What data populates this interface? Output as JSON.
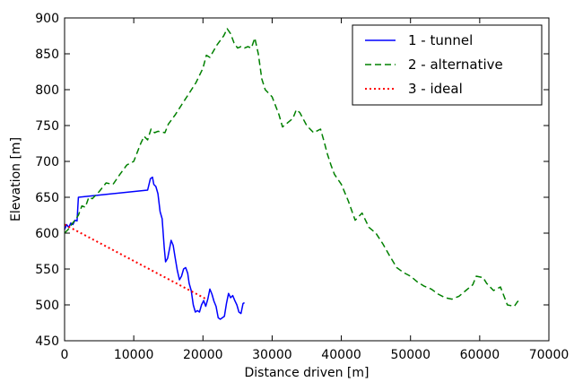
{
  "chart_data": {
    "type": "line",
    "title": "",
    "xlabel": "Distance driven [m]",
    "ylabel": "Elevation [m]",
    "xlim": [
      0,
      70000
    ],
    "ylim": [
      450,
      900
    ],
    "xticks": [
      0,
      10000,
      20000,
      30000,
      40000,
      50000,
      60000,
      70000
    ],
    "yticks": [
      450,
      500,
      550,
      600,
      650,
      700,
      750,
      800,
      850,
      900
    ],
    "grid": false,
    "legend_position": "top-right",
    "series": [
      {
        "name": "1 - tunnel",
        "color": "#0000ff",
        "style": "solid",
        "points": [
          [
            0,
            605
          ],
          [
            300,
            612
          ],
          [
            600,
            608
          ],
          [
            900,
            614
          ],
          [
            1200,
            612
          ],
          [
            1500,
            618
          ],
          [
            1800,
            617
          ],
          [
            2000,
            650
          ],
          [
            6000,
            654
          ],
          [
            12000,
            660
          ],
          [
            12400,
            676
          ],
          [
            12700,
            678
          ],
          [
            12900,
            668
          ],
          [
            13200,
            665
          ],
          [
            13500,
            655
          ],
          [
            13800,
            630
          ],
          [
            14100,
            620
          ],
          [
            14400,
            580
          ],
          [
            14600,
            560
          ],
          [
            14900,
            565
          ],
          [
            15200,
            580
          ],
          [
            15400,
            590
          ],
          [
            15700,
            583
          ],
          [
            16000,
            565
          ],
          [
            16300,
            548
          ],
          [
            16600,
            535
          ],
          [
            16900,
            540
          ],
          [
            17200,
            550
          ],
          [
            17500,
            552
          ],
          [
            17800,
            544
          ],
          [
            18000,
            530
          ],
          [
            18300,
            520
          ],
          [
            18600,
            500
          ],
          [
            18900,
            490
          ],
          [
            19200,
            492
          ],
          [
            19500,
            490
          ],
          [
            19800,
            500
          ],
          [
            20100,
            506
          ],
          [
            20400,
            498
          ],
          [
            20700,
            508
          ],
          [
            21000,
            522
          ],
          [
            21300,
            515
          ],
          [
            21600,
            505
          ],
          [
            21900,
            498
          ],
          [
            22200,
            482
          ],
          [
            22500,
            480
          ],
          [
            22800,
            482
          ],
          [
            23100,
            484
          ],
          [
            23400,
            502
          ],
          [
            23700,
            516
          ],
          [
            24000,
            510
          ],
          [
            24300,
            513
          ],
          [
            24600,
            506
          ],
          [
            24900,
            500
          ],
          [
            25200,
            490
          ],
          [
            25500,
            488
          ],
          [
            25800,
            502
          ],
          [
            26000,
            503
          ]
        ]
      },
      {
        "name": "2 - alternative",
        "color": "#008000",
        "style": "dashed",
        "points": [
          [
            0,
            600
          ],
          [
            500,
            605
          ],
          [
            1000,
            612
          ],
          [
            1500,
            618
          ],
          [
            2000,
            625
          ],
          [
            2500,
            638
          ],
          [
            3000,
            636
          ],
          [
            3500,
            650
          ],
          [
            4000,
            648
          ],
          [
            5000,
            658
          ],
          [
            6000,
            670
          ],
          [
            7000,
            668
          ],
          [
            8000,
            682
          ],
          [
            9000,
            695
          ],
          [
            10000,
            700
          ],
          [
            11000,
            725
          ],
          [
            11500,
            735
          ],
          [
            12000,
            730
          ],
          [
            12500,
            745
          ],
          [
            13000,
            740
          ],
          [
            13500,
            742
          ],
          [
            14500,
            740
          ],
          [
            15000,
            752
          ],
          [
            16000,
            765
          ],
          [
            17000,
            780
          ],
          [
            18000,
            795
          ],
          [
            19000,
            810
          ],
          [
            20000,
            830
          ],
          [
            20500,
            848
          ],
          [
            21000,
            845
          ],
          [
            22000,
            862
          ],
          [
            23000,
            875
          ],
          [
            23500,
            885
          ],
          [
            24000,
            878
          ],
          [
            24500,
            865
          ],
          [
            25000,
            858
          ],
          [
            25500,
            860
          ],
          [
            26000,
            858
          ],
          [
            26500,
            860
          ],
          [
            27000,
            858
          ],
          [
            27500,
            872
          ],
          [
            28000,
            850
          ],
          [
            28500,
            815
          ],
          [
            29000,
            800
          ],
          [
            30000,
            790
          ],
          [
            31000,
            765
          ],
          [
            31500,
            748
          ],
          [
            32000,
            752
          ],
          [
            33000,
            760
          ],
          [
            33500,
            772
          ],
          [
            34000,
            768
          ],
          [
            35000,
            750
          ],
          [
            36000,
            740
          ],
          [
            37000,
            745
          ],
          [
            37500,
            728
          ],
          [
            38000,
            710
          ],
          [
            38500,
            695
          ],
          [
            39000,
            682
          ],
          [
            40000,
            668
          ],
          [
            41000,
            645
          ],
          [
            42000,
            618
          ],
          [
            43000,
            628
          ],
          [
            44000,
            608
          ],
          [
            45000,
            600
          ],
          [
            46000,
            585
          ],
          [
            47000,
            568
          ],
          [
            48000,
            552
          ],
          [
            49000,
            545
          ],
          [
            50000,
            540
          ],
          [
            51000,
            532
          ],
          [
            52000,
            526
          ],
          [
            53000,
            522
          ],
          [
            54000,
            515
          ],
          [
            55000,
            510
          ],
          [
            56000,
            508
          ],
          [
            57000,
            512
          ],
          [
            58000,
            520
          ],
          [
            59000,
            528
          ],
          [
            59500,
            540
          ],
          [
            60500,
            538
          ],
          [
            61000,
            530
          ],
          [
            62000,
            520
          ],
          [
            63000,
            525
          ],
          [
            64000,
            500
          ],
          [
            65000,
            498
          ],
          [
            65500,
            505
          ],
          [
            66000,
            502
          ]
        ]
      },
      {
        "name": "3 - ideal",
        "color": "#ff0000",
        "style": "dotted",
        "points": [
          [
            0,
            612
          ],
          [
            20500,
            508
          ]
        ]
      }
    ]
  }
}
